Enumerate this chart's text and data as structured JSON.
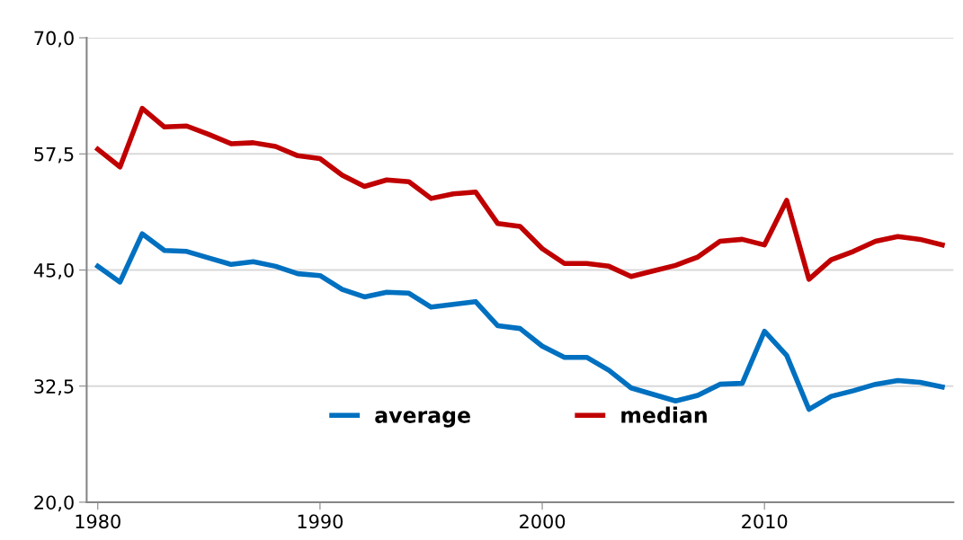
{
  "chart_data": {
    "type": "line",
    "x": [
      1980,
      1981,
      1982,
      1983,
      1984,
      1985,
      1986,
      1987,
      1988,
      1989,
      1990,
      1991,
      1992,
      1993,
      1994,
      1995,
      1996,
      1997,
      1998,
      1999,
      2000,
      2001,
      2002,
      2003,
      2004,
      2005,
      2006,
      2007,
      2008,
      2009,
      2010,
      2011,
      2012,
      2013,
      2014,
      2015,
      2016,
      2017,
      2018
    ],
    "series": [
      {
        "name": "average",
        "color": "#0070c0",
        "values": [
          45.4,
          43.7,
          48.9,
          47.1,
          47.0,
          46.3,
          45.6,
          45.9,
          45.4,
          44.6,
          44.4,
          42.9,
          42.1,
          42.6,
          42.5,
          41.0,
          41.3,
          41.6,
          39.0,
          38.7,
          36.8,
          35.6,
          35.6,
          34.2,
          32.3,
          31.6,
          30.9,
          31.5,
          32.7,
          32.8,
          38.4,
          35.8,
          30.0,
          31.4,
          32.0,
          32.7,
          33.1,
          32.9,
          32.4
        ]
      },
      {
        "name": "median",
        "color": "#c00000",
        "values": [
          58.0,
          56.1,
          62.4,
          60.4,
          60.5,
          59.6,
          58.6,
          58.7,
          58.3,
          57.3,
          57.0,
          55.2,
          54.0,
          54.7,
          54.5,
          52.7,
          53.2,
          53.4,
          50.0,
          49.7,
          47.3,
          45.7,
          45.7,
          45.4,
          44.3,
          44.9,
          45.5,
          46.4,
          48.1,
          48.3,
          47.7,
          52.5,
          44.0,
          46.1,
          47.0,
          48.1,
          48.6,
          48.3,
          47.7
        ]
      }
    ],
    "xlim": [
      1979.5,
      2018.5
    ],
    "xticks": [
      1980,
      1990,
      2000,
      2010
    ],
    "ylim": [
      20,
      70
    ],
    "yticks": [
      {
        "value": 20,
        "label": "20,0"
      },
      {
        "value": 32.5,
        "label": "32,5"
      },
      {
        "value": 45,
        "label": "45,0"
      },
      {
        "value": 57.5,
        "label": "57,5"
      },
      {
        "value": 70,
        "label": "70,0"
      }
    ],
    "grid": "y",
    "legend": "bottom",
    "marker": "none",
    "line_style": "solid"
  }
}
